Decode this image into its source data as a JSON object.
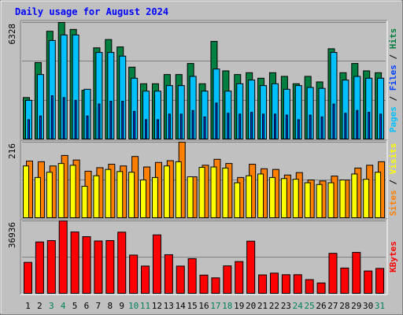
{
  "chart_data": {
    "type": "bar",
    "title": "Daily usage for August 2024",
    "categories": [
      "1",
      "2",
      "3",
      "4",
      "5",
      "6",
      "7",
      "8",
      "9",
      "10",
      "11",
      "12",
      "13",
      "14",
      "15",
      "16",
      "17",
      "18",
      "19",
      "20",
      "21",
      "22",
      "23",
      "24",
      "25",
      "26",
      "27",
      "28",
      "29",
      "30",
      "31"
    ],
    "weekend_days": [
      "3",
      "4",
      "10",
      "11",
      "17",
      "18",
      "24",
      "25",
      "31"
    ],
    "panels": [
      {
        "max_label": "6328",
        "ymax": 6328,
        "legend": [
          {
            "text": "Hits",
            "color": "#008040"
          },
          {
            "text": "Files",
            "color": "#0040ff"
          },
          {
            "text": "Pages",
            "color": "#00c0ff"
          }
        ],
        "series": [
          {
            "name": "Hits",
            "color": "#008040",
            "values": [
              2250,
              4150,
              5850,
              6328,
              5950,
              2650,
              4950,
              5400,
              5000,
              3900,
              3000,
              3000,
              3500,
              3500,
              4100,
              3000,
              5300,
              3700,
              3500,
              3600,
              3300,
              3600,
              3400,
              3000,
              3400,
              3100,
              4900,
              3600,
              4100,
              3700,
              3600
            ]
          },
          {
            "name": "Files",
            "color": "#0040ff",
            "values": [
              1050,
              1250,
              2350,
              2250,
              2100,
              1250,
              1900,
              2050,
              2050,
              1500,
              1050,
              1050,
              1350,
              1350,
              1550,
              1200,
              1950,
              1400,
              1350,
              1450,
              1350,
              1350,
              1300,
              1050,
              1300,
              1200,
              1900,
              1400,
              1550,
              1450,
              1350
            ]
          },
          {
            "name": "Pages",
            "color": "#00c0ff",
            "values": [
              2100,
              3500,
              5350,
              5650,
              5650,
              2700,
              4700,
              4700,
              4500,
              3300,
              2600,
              2600,
              2900,
              2900,
              3400,
              2600,
              3800,
              2600,
              3000,
              3200,
              2900,
              3000,
              2700,
              2900,
              2800,
              2750,
              4700,
              3200,
              3400,
              3300,
              3300
            ]
          }
        ]
      },
      {
        "max_label": "216",
        "ymax": 216,
        "legend": [
          {
            "text": "Visits",
            "color": "#ffff00"
          },
          {
            "text": "Sites",
            "color": "#ff8000"
          }
        ],
        "series": [
          {
            "name": "Sites",
            "color": "#ff8000",
            "values": [
              162,
              160,
              148,
              178,
              165,
              133,
              143,
              153,
              148,
              175,
              145,
              158,
              163,
              216,
              117,
              150,
              167,
              155,
              115,
              153,
              140,
              138,
              122,
              129,
              108,
              105,
              119,
              108,
              142,
              150,
              160
            ]
          },
          {
            "name": "Visits",
            "color": "#ffff00",
            "values": [
              148,
              115,
              130,
              155,
              150,
              90,
              120,
              138,
              132,
              130,
              108,
              115,
              148,
              160,
              117,
              144,
              145,
              142,
              100,
              120,
              125,
              115,
              112,
              110,
              100,
              95,
              100,
              108,
              125,
              110,
              130
            ]
          }
        ]
      },
      {
        "max_label": "36936",
        "ymax": 36936,
        "legend": [
          {
            "text": "KBytes",
            "color": "#ff0000"
          }
        ],
        "series": [
          {
            "name": "KBytes",
            "color": "#ff0000",
            "values": [
              15800,
              26200,
              26900,
              36936,
              31300,
              28900,
              26700,
              26900,
              31200,
              19500,
              13900,
              29800,
              19700,
              13900,
              17700,
              9300,
              7900,
              14000,
              16200,
              26600,
              9400,
              10300,
              9500,
              9500,
              7000,
              5300,
              20400,
              12900,
              20900,
              11400,
              12700
            ]
          }
        ]
      }
    ]
  }
}
